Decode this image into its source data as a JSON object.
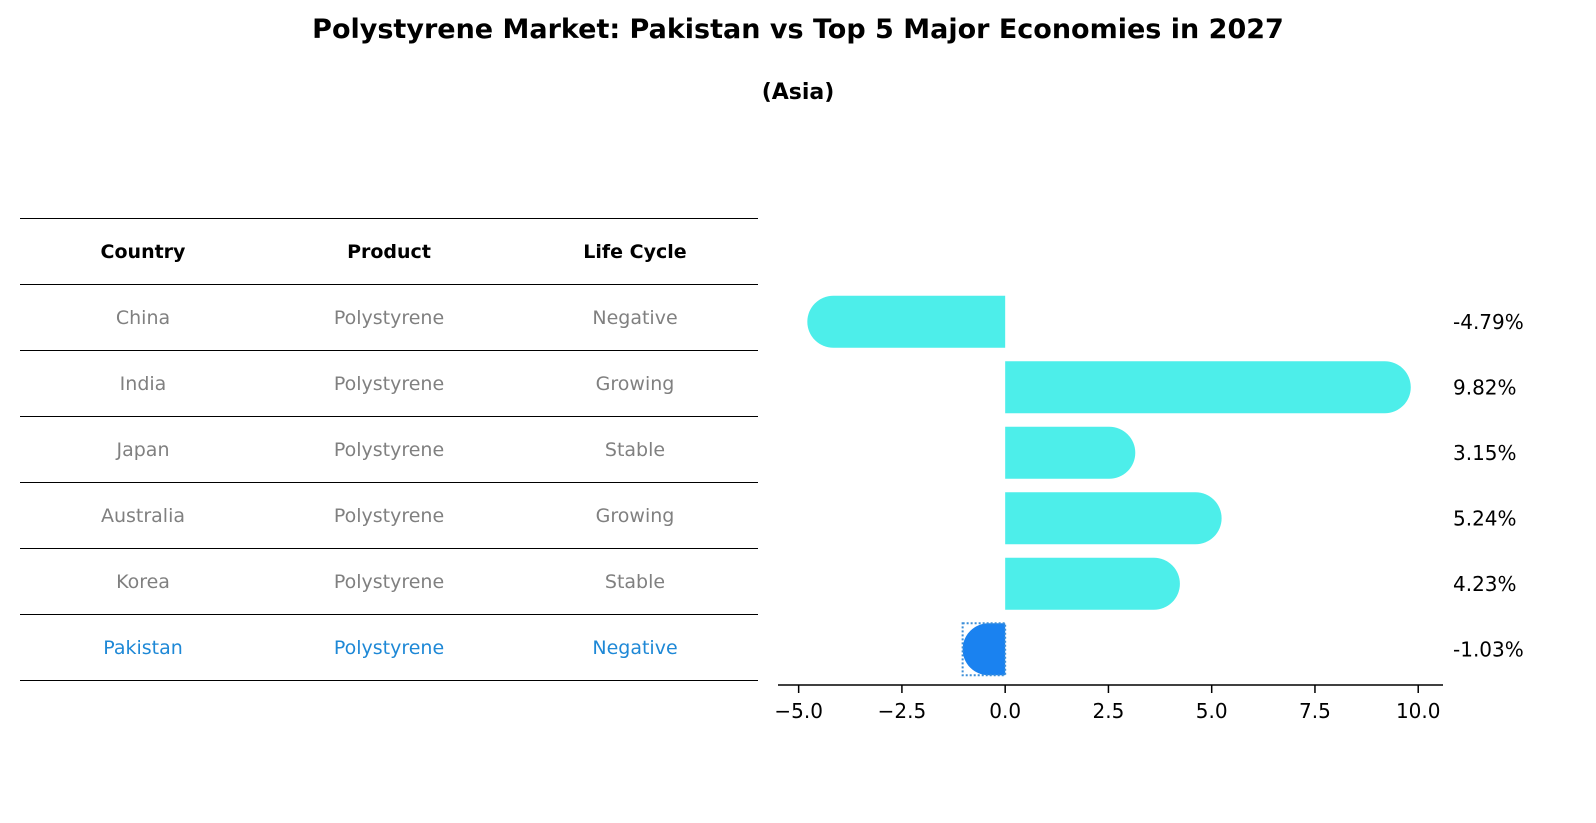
{
  "chart_data": {
    "type": "bar",
    "orientation": "horizontal",
    "title": "Polystyrene Market: Pakistan vs Top 5 Major Economies in 2027",
    "subtitle": "(Asia)",
    "categories": [
      "China",
      "India",
      "Japan",
      "Australia",
      "Korea",
      "Pakistan"
    ],
    "values": [
      -4.79,
      9.82,
      3.15,
      5.24,
      4.23,
      -1.03
    ],
    "value_labels": [
      "-4.79%",
      "9.82%",
      "3.15%",
      "5.24%",
      "4.23%",
      "-1.03%"
    ],
    "highlight": "Pakistan",
    "xlim": [
      -5.5,
      10.6
    ],
    "xticks": [
      -5.0,
      -2.5,
      0.0,
      2.5,
      5.0,
      7.5,
      10.0
    ],
    "xtick_labels": [
      "−5.0",
      "−2.5",
      "0.0",
      "2.5",
      "5.0",
      "7.5",
      "10.0"
    ],
    "grid": false,
    "colors": {
      "bar": "#4deeea",
      "highlight_bar": "#1a82f0"
    }
  },
  "table": {
    "headers": [
      "Country",
      "Product",
      "Life Cycle"
    ],
    "rows": [
      [
        "China",
        "Polystyrene",
        "Negative"
      ],
      [
        "India",
        "Polystyrene",
        "Growing"
      ],
      [
        "Japan",
        "Polystyrene",
        "Stable"
      ],
      [
        "Australia",
        "Polystyrene",
        "Growing"
      ],
      [
        "Korea",
        "Polystyrene",
        "Stable"
      ],
      [
        "Pakistan",
        "Polystyrene",
        "Negative"
      ]
    ],
    "highlight_row": 5,
    "colors": {
      "text": "#808080",
      "highlight_text": "#1e88d6"
    }
  }
}
